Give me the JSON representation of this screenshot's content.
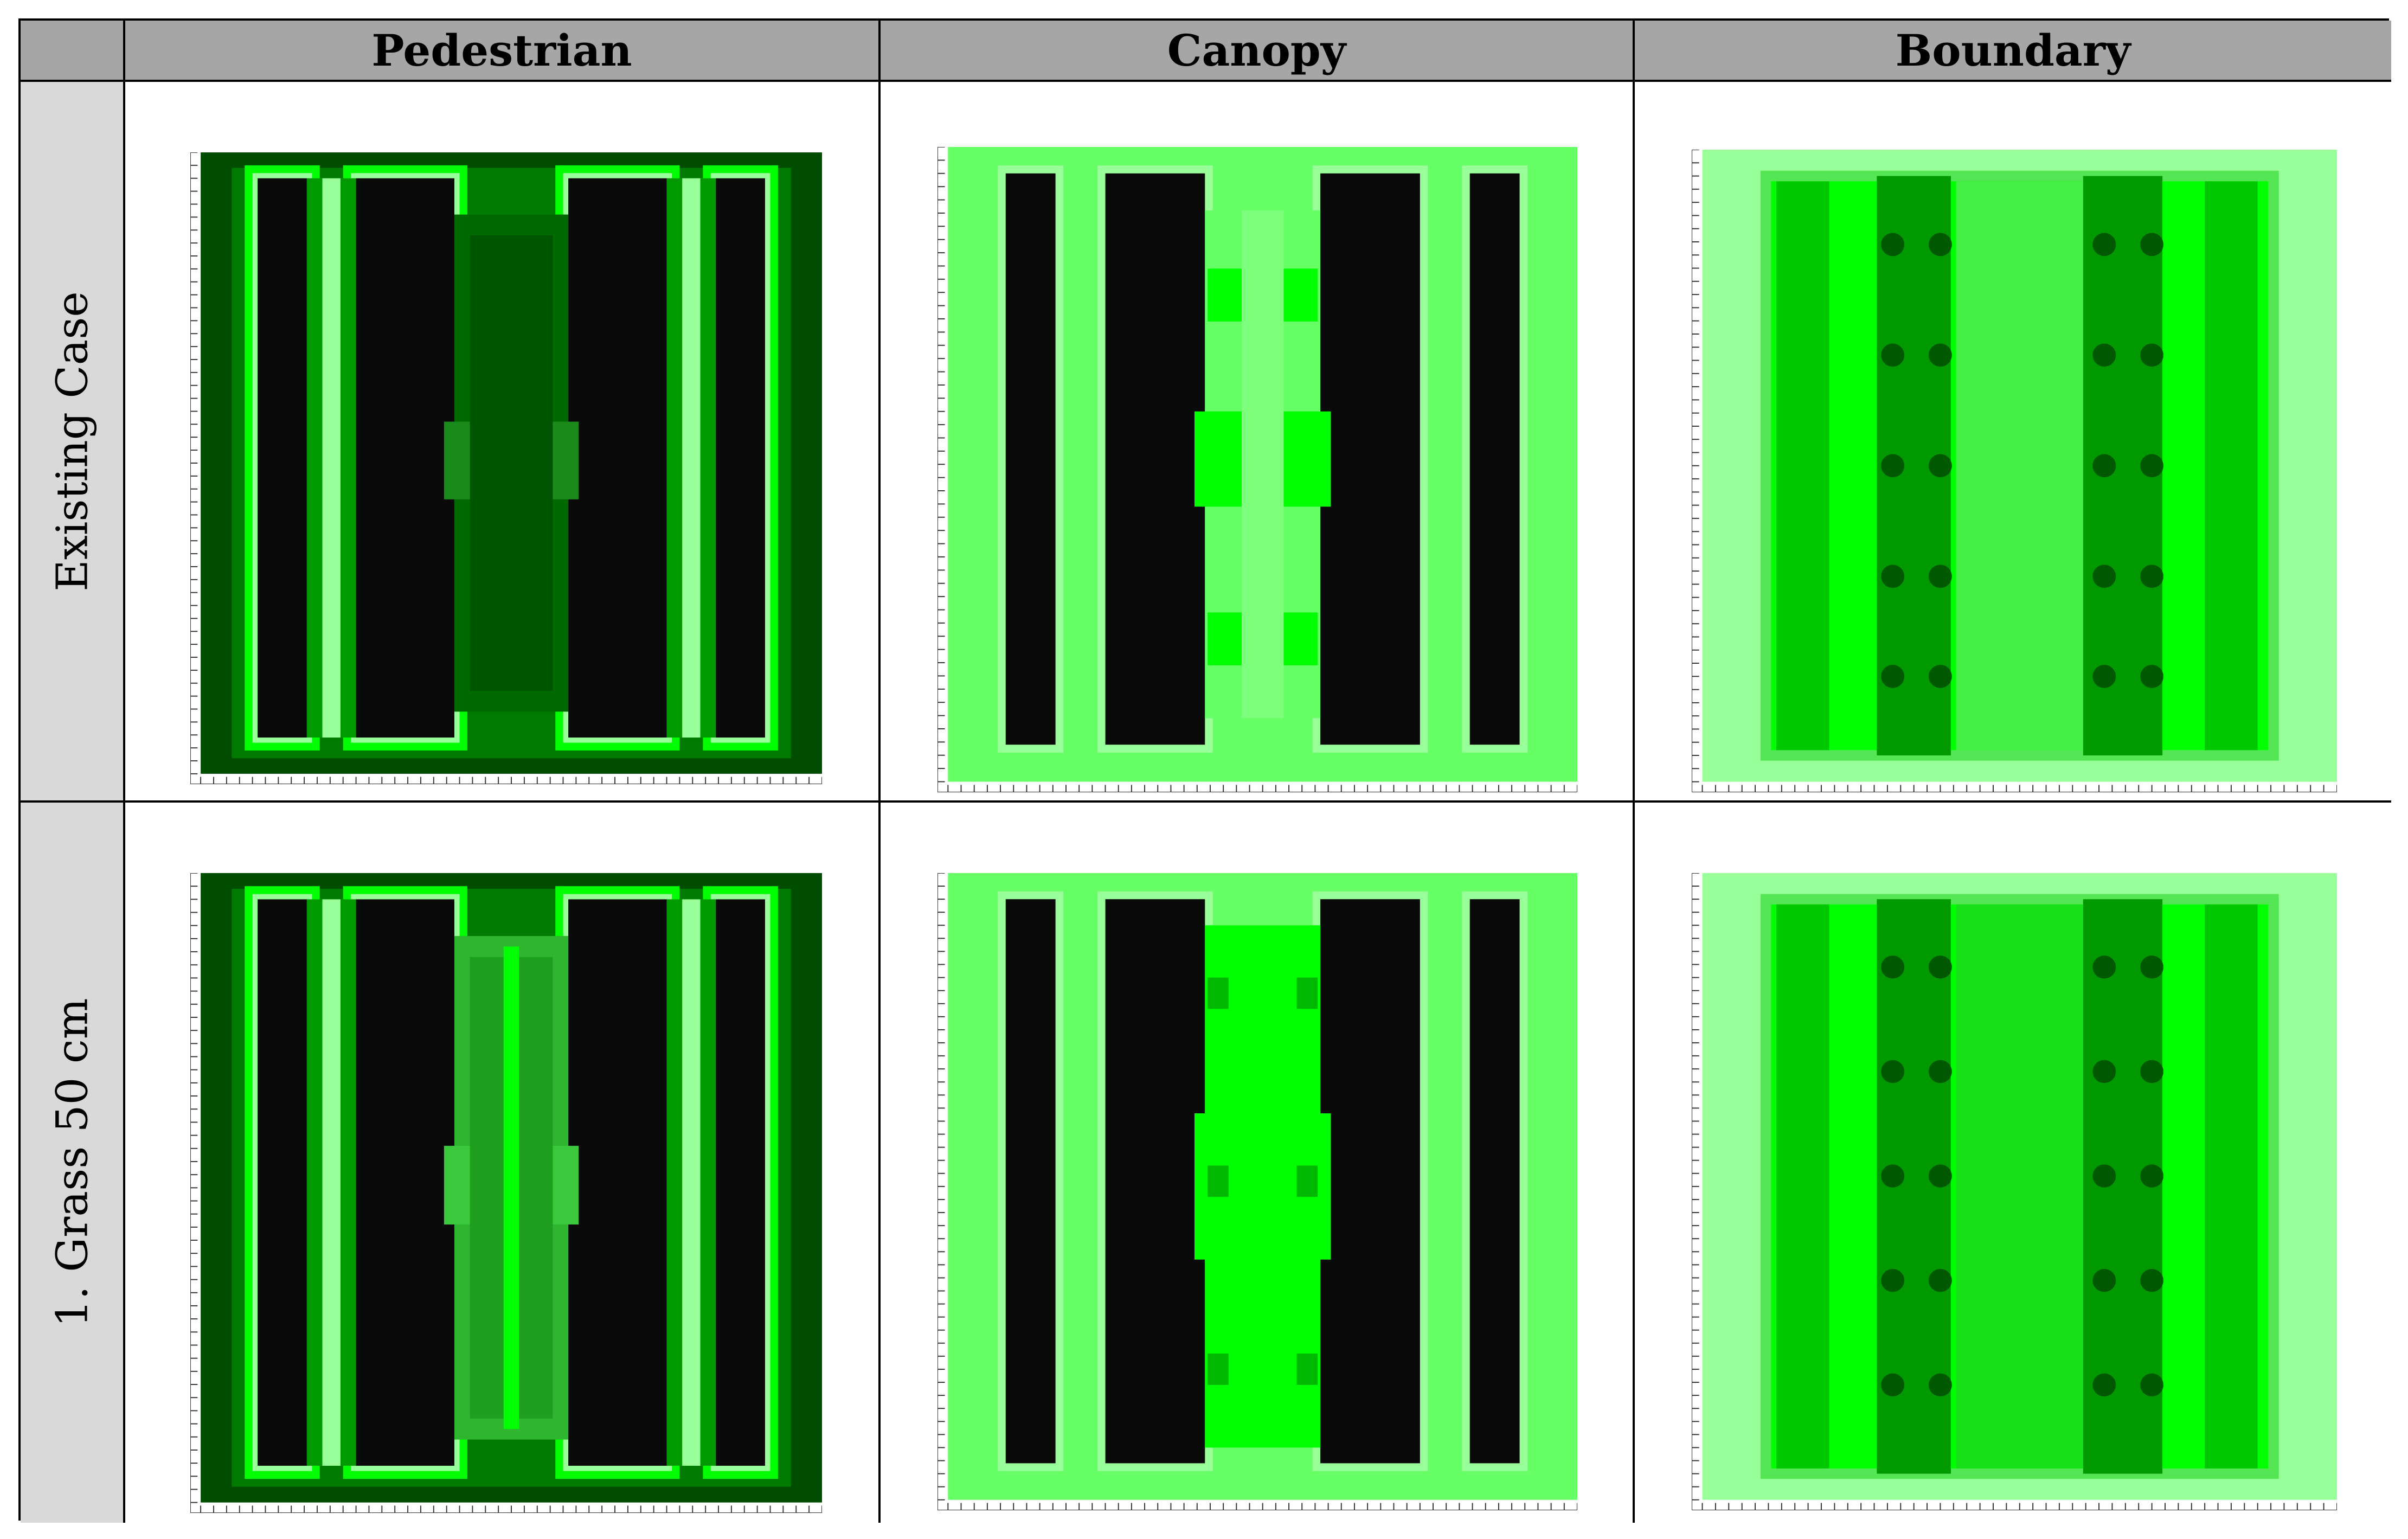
{
  "table": {
    "columns": [
      "Pedestrian",
      "Canopy",
      "Boundary"
    ],
    "rows": [
      "Existing Case",
      "1. Grass 50 cm"
    ]
  },
  "cells": [
    {
      "row": "Existing Case",
      "column": "Pedestrian",
      "variant": "pedestrian",
      "scenario": "existing"
    },
    {
      "row": "Existing Case",
      "column": "Canopy",
      "variant": "canopy",
      "scenario": "existing"
    },
    {
      "row": "Existing Case",
      "column": "Boundary",
      "variant": "boundary",
      "scenario": "existing"
    },
    {
      "row": "1. Grass 50 cm",
      "column": "Pedestrian",
      "variant": "pedestrian",
      "scenario": "grass"
    },
    {
      "row": "1. Grass 50 cm",
      "column": "Canopy",
      "variant": "canopy",
      "scenario": "grass"
    },
    {
      "row": "1. Grass 50 cm",
      "column": "Boundary",
      "variant": "boundary",
      "scenario": "grass"
    }
  ],
  "colors": {
    "header_bg": "#a6a6a6",
    "row_header_bg": "#d9d9d9",
    "building": "#0a0a0a",
    "green_dark": "#004d00",
    "green_mid": "#009900",
    "green_bright": "#00ff00",
    "green_light": "#66ff66",
    "green_pale": "#99ff99"
  }
}
